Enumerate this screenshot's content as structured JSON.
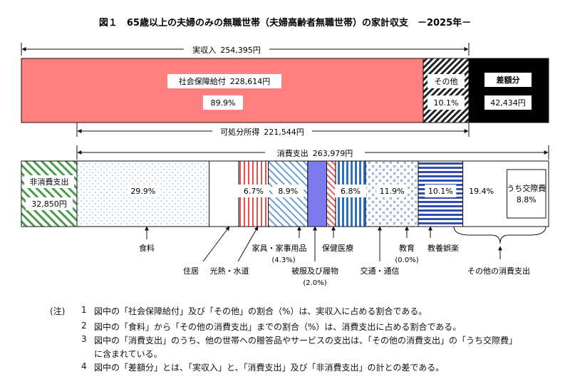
{
  "chart_data": {
    "type": "bar",
    "title": "図１　65歳以上の夫婦のみの無職世帯（夫婦高齢者無職世帯）の家計収支　－2025年－",
    "income": {
      "total_label": "実収入",
      "total_value": "254,395円",
      "segments": [
        {
          "name": "社会保障給付",
          "value": "228,614円",
          "value_num": 228614,
          "share": "89.9%",
          "color": "#ff7f7f"
        },
        {
          "name": "その他",
          "share": "10.1%",
          "pattern": "diagonal-hatch"
        }
      ],
      "deficit": {
        "name": "差額分",
        "value": "42,434円",
        "value_num": 42434,
        "color": "#000000"
      }
    },
    "disposable_income": {
      "label": "可処分所得",
      "value": "221,544円"
    },
    "consumption_total": {
      "label": "消費支出",
      "value": "263,979円"
    },
    "non_consumption": {
      "name": "非消費支出",
      "value": "32,850円",
      "value_num": 32850,
      "pattern": "green-diagonal"
    },
    "consumption_categories": [
      {
        "name": "食料",
        "share": "29.9%",
        "share_num": 29.9,
        "pattern": "dots",
        "shows_label": true
      },
      {
        "name": "住居",
        "share": "",
        "share_num": 6.7,
        "pattern": "white"
      },
      {
        "name": "光熱・水道",
        "share": "6.7%",
        "share_num": 6.7,
        "pattern": "red-vertical",
        "shows_label": true
      },
      {
        "name": "家具・家事用品",
        "share": "(4.3%)",
        "share_num": 4.3,
        "pattern": "blue-diagonal"
      },
      {
        "name": "被服及び履物",
        "share": "(2.0%)",
        "share_num": 2.0,
        "pattern": "red-diagonal"
      },
      {
        "name": "保健医療",
        "share": "6.8%",
        "share_num": 6.8,
        "pattern": "blue-vertical",
        "shows_label": true
      },
      {
        "name": "交通・通信",
        "share": "11.9%",
        "share_num": 11.9,
        "pattern": "cross",
        "shows_label": true
      },
      {
        "name": "教育",
        "share": "(0.0%)",
        "share_num": 0.0,
        "pattern": "white"
      },
      {
        "name": "教養娯楽",
        "share": "10.1%",
        "share_num": 10.1,
        "pattern": "blue-horizontal",
        "shows_label": true
      },
      {
        "name": "その他の消費支出",
        "share": "19.4%",
        "share_num": 19.4,
        "pattern": "white",
        "shows_label": true,
        "sub": {
          "name": "うち交際費",
          "share": "8.8%",
          "share_num": 8.8
        }
      }
    ],
    "extra_shares": {
      "after_nonconsumption": "8.9%"
    },
    "colors": {
      "social_security": "#ff7f7f",
      "deficit": "#000000",
      "purple": "#7b7bee"
    }
  },
  "notes": {
    "head": "(注)",
    "items": [
      {
        "num": "1",
        "text": "図中の「社会保障給付」及び「その他」の割合（%）は、実収入に占める割合である。"
      },
      {
        "num": "2",
        "text": "図中の「食料」から「その他の消費支出」までの割合（%）は、消費支出に占める割合である。"
      },
      {
        "num": "3",
        "text": "図中の「消費支出」のうち、他の世帯への贈答品やサービスの支出は、「その他の消費支出」の「うち交際費」"
      },
      {
        "num": "",
        "text": "に含まれている。"
      },
      {
        "num": "4",
        "text": "図中の「差額分」とは、「実収入」と、「消費支出」及び「非消費支出」の計との差である。"
      }
    ]
  }
}
